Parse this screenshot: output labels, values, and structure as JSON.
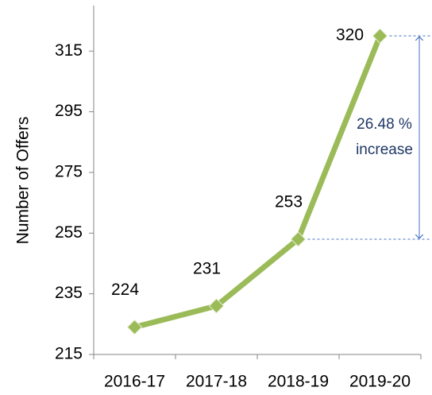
{
  "chart_data": {
    "type": "line",
    "y_label": "Number of Offers",
    "categories": [
      "2016-17",
      "2017-18",
      "2018-19",
      "2019-20"
    ],
    "values": [
      224,
      231,
      253,
      320
    ],
    "color": "#9bbb59",
    "ylim": [
      215,
      330
    ],
    "yticks": [
      215,
      235,
      255,
      275,
      295,
      315
    ],
    "annotation": [
      "26.48 %",
      "increase"
    ],
    "annotation_color": "#4472c4"
  }
}
